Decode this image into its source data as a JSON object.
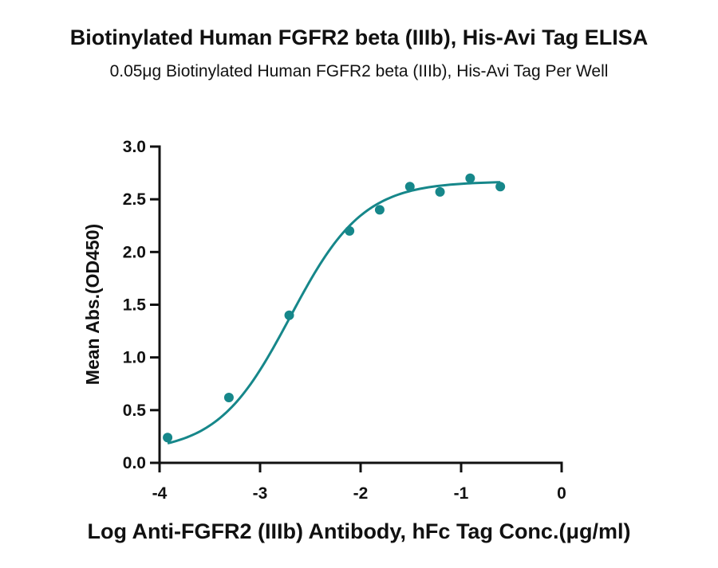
{
  "chart_data": {
    "type": "scatter",
    "title": "Biotinylated Human FGFR2 beta (IIIb), His-Avi Tag ELISA",
    "subtitle": "0.05μg Biotinylated Human FGFR2 beta (IIIb), His-Avi Tag Per Well",
    "xlabel": "Log Anti-FGFR2 (IIIb) Antibody, hFc Tag Conc.(μg/ml)",
    "ylabel": "Mean Abs.(OD450)",
    "xlim": [
      -4,
      0
    ],
    "ylim": [
      0,
      3
    ],
    "xticks": [
      "-4",
      "-3",
      "-2",
      "-1",
      "0"
    ],
    "yticks": [
      "0.0",
      "0.5",
      "1.0",
      "1.5",
      "2.0",
      "2.5",
      "3.0"
    ],
    "grid": false,
    "color": "#16878a",
    "series": [
      {
        "points": [
          {
            "x": -3.92,
            "y": 0.24
          },
          {
            "x": -3.31,
            "y": 0.62
          },
          {
            "x": -2.71,
            "y": 1.4
          },
          {
            "x": -2.11,
            "y": 2.2
          },
          {
            "x": -1.81,
            "y": 2.4
          },
          {
            "x": -1.51,
            "y": 2.62
          },
          {
            "x": -1.21,
            "y": 2.57
          },
          {
            "x": -0.91,
            "y": 2.7
          },
          {
            "x": -0.61,
            "y": 2.62
          }
        ]
      }
    ],
    "fit_curve": {
      "model": "4PL",
      "bottom": 0.1,
      "top": 2.67,
      "logEC50": -2.7,
      "hill": 1.2,
      "x_range": [
        -3.92,
        -0.61
      ]
    }
  }
}
